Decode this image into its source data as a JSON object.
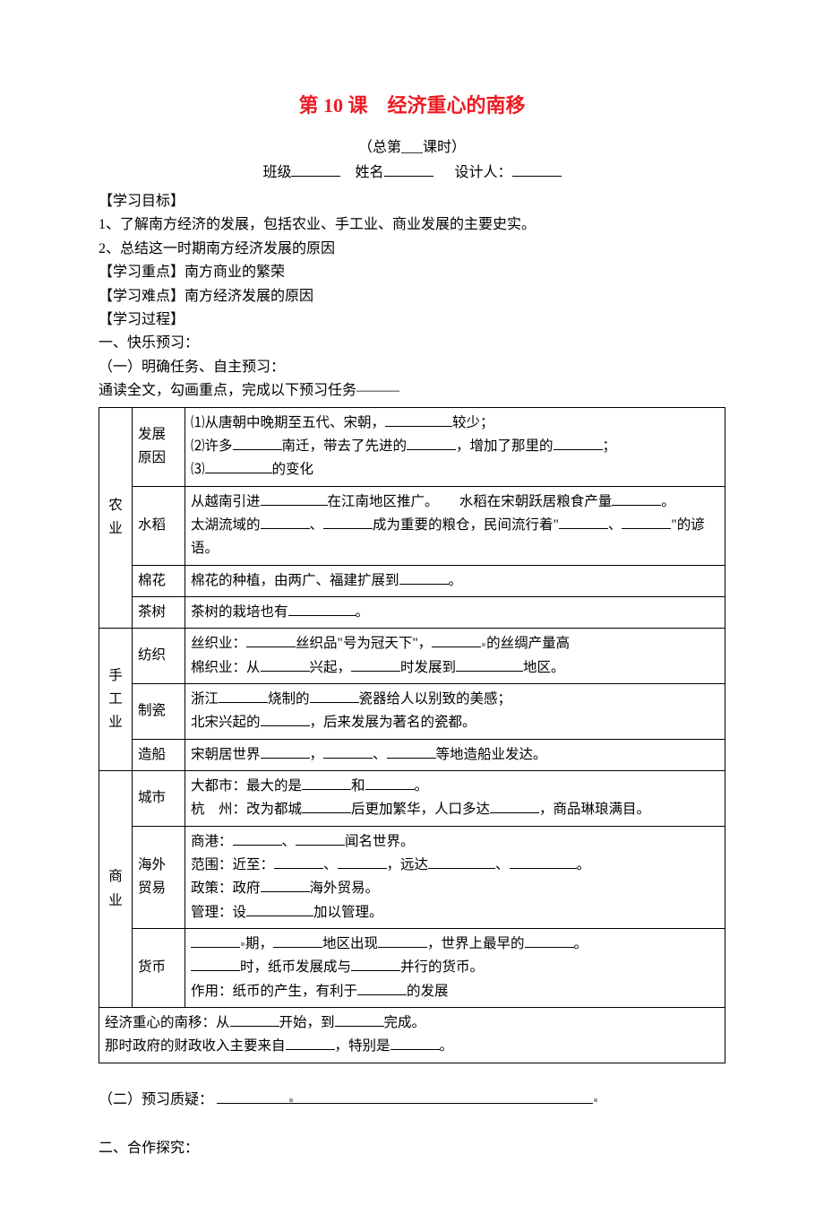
{
  "title": "第 10 课　经济重心的南移",
  "subtitle": "（总第___课时）",
  "form_labels": {
    "class": "班级",
    "name": "姓名",
    "designer": "设计人："
  },
  "headings": {
    "goal": "【学习目标】",
    "focus": "【学习重点】",
    "difficulty": "【学习难点】",
    "process": "【学习过程】",
    "preview": "一、快乐预习：",
    "task": "（一）明确任务、自主预习：",
    "intro": "通读全文，勾画重点，完成以下预习任务———",
    "question": "（二）预习质疑：",
    "explore": "二、合作探究："
  },
  "goal_lines": [
    "1、了解南方经济的发展，包括农业、手工业、商业发展的主要史实。",
    "2、总结这一时期南方经济发展的原因"
  ],
  "focus_text": "南方商业的繁荣",
  "difficulty_text": "南方经济发展的原因",
  "table": {
    "agri": {
      "cat": "农业",
      "reason_label": "发展原因",
      "reason_lines": {
        "l1a": "⑴从唐朝中晚期至五代、宋朝，",
        "l1b": "较少；",
        "l2a": "⑵许多",
        "l2b": "南迁，带去了先进的",
        "l2c": "，增加了那里的",
        "l2d": "；",
        "l3a": "⑶",
        "l3b": "的变化"
      },
      "rice_label": "水稻",
      "rice": {
        "l1a": "从越南引进",
        "l1b": "在江南地区推广。　　水稻在宋朝跃居粮食产量",
        "l1c": "。",
        "l2a": "太湖流域的",
        "l2b": "、",
        "l2c": "成为重要的粮仓，民间流行着\"",
        "l2d": "、",
        "l2e": "\"的谚",
        "l3": "语。"
      },
      "cotton_label": "棉花",
      "cotton": {
        "a": "棉花的种植，由两广、福建扩展到",
        "b": "。"
      },
      "tea_label": "茶树",
      "tea": {
        "a": "茶树的栽培也有",
        "b": "。"
      }
    },
    "hand": {
      "cat": "手工业",
      "textile_label": "纺织",
      "textile": {
        "l1a": "丝织业：",
        "l1b": "丝织品\"号为冠天下\"，",
        "l1c": "的丝绸产量高",
        "l2a": "棉织业：从",
        "l2b": "兴起，",
        "l2c": "时发展到",
        "l2d": "地区。"
      },
      "porcelain_label": "制瓷",
      "porcelain": {
        "l1a": "浙江",
        "l1b": "烧制的",
        "l1c": "瓷器给人以别致的美感；",
        "l2a": "北宋兴起的",
        "l2b": "，后来发展为著名的瓷都。"
      },
      "ship_label": "造船",
      "ship": {
        "a": "宋朝居世界",
        "b": "，",
        "c": "、",
        "d": "等地造船业发达。"
      }
    },
    "biz": {
      "cat": "商业",
      "city_label": "城市",
      "city": {
        "l1a": "大都市：最大的是",
        "l1b": "和",
        "l1c": "。",
        "l2a": "杭　州：改为都城",
        "l2b": "后更加繁华，人口多达",
        "l2c": "，商品琳琅满目。"
      },
      "trade_label": "海外贸易",
      "trade": {
        "l1a": "商港：",
        "l1b": "、",
        "l1c": "闻名世界。",
        "l2a": "范围：近至：",
        "l2b": "、",
        "l2c": "，远达",
        "l2d": "、",
        "l2e": "。",
        "l3a": "政策：政府",
        "l3b": "海外贸易。",
        "l4a": "管理：设",
        "l4b": "加以管理。"
      },
      "money_label": "货币",
      "money": {
        "l1a": "期，",
        "l1b": "地区出现",
        "l1c": "，世界上最早的",
        "l1d": "。",
        "l2a": "时，纸币发展成与",
        "l2b": "并行的货币。",
        "l3a": "作用：纸币的产生，有利于",
        "l3b": "的发展"
      }
    },
    "summary": {
      "l1a": "经济重心的南移：从",
      "l1b": "开始，到",
      "l1c": "完成。",
      "l2a": "那时政府的财政收入主要来自",
      "l2b": "，特别是",
      "l2c": "。"
    }
  }
}
